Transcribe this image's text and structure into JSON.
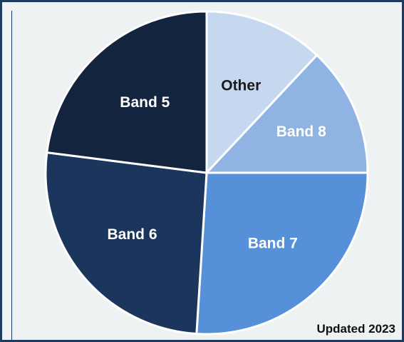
{
  "chart_data": {
    "type": "pie",
    "slices": [
      {
        "label": "Other",
        "value": 12,
        "color": "#c6d8f0",
        "label_color": "#1a1a1a"
      },
      {
        "label": "Band 8",
        "value": 13,
        "color": "#8fb3e3",
        "label_color": "#ffffff"
      },
      {
        "label": "Band 7",
        "value": 26,
        "color": "#5690d8",
        "label_color": "#ffffff"
      },
      {
        "label": "Band 6",
        "value": 26,
        "color": "#1b355c",
        "label_color": "#ffffff"
      },
      {
        "label": "Band 5",
        "value": 23,
        "color": "#13243f",
        "label_color": "#ffffff"
      }
    ],
    "start": "top",
    "direction": "clockwise"
  },
  "footnote": "Updated 2023"
}
